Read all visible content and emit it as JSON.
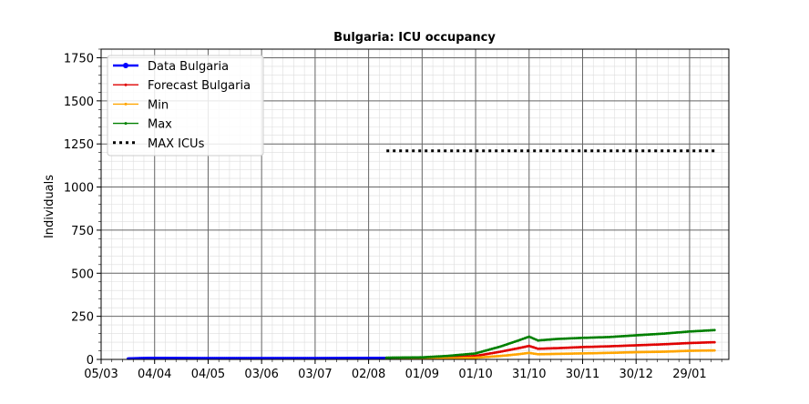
{
  "chart_data": {
    "type": "line",
    "title": "Bulgaria: ICU occupancy",
    "xlabel": "",
    "ylabel": "Individuals",
    "xticks": [
      "05/03",
      "04/04",
      "04/05",
      "03/06",
      "03/07",
      "02/08",
      "01/09",
      "01/10",
      "31/10",
      "30/11",
      "30/12",
      "29/01"
    ],
    "yticks": [
      0,
      250,
      500,
      750,
      1000,
      1250,
      1500,
      1750
    ],
    "x_range": [
      "2020-03-05",
      "2021-02-20"
    ],
    "ylim": [
      0,
      1800
    ],
    "grid": true,
    "legend_position": "top-left",
    "series": [
      {
        "name": "Data Bulgaria",
        "color": "#0000ff",
        "style": "solid-dots",
        "points": [
          [
            "2020-03-20",
            5
          ],
          [
            "2020-04-01",
            8
          ],
          [
            "2020-05-01",
            7
          ],
          [
            "2020-06-01",
            7
          ],
          [
            "2020-07-01",
            7
          ],
          [
            "2020-08-01",
            8
          ],
          [
            "2020-08-12",
            8
          ]
        ]
      },
      {
        "name": "Forecast Bulgaria",
        "color": "#e00000",
        "style": "solid-dots",
        "points": [
          [
            "2020-08-12",
            8
          ],
          [
            "2020-09-01",
            8
          ],
          [
            "2020-09-15",
            10
          ],
          [
            "2020-10-01",
            20
          ],
          [
            "2020-10-15",
            45
          ],
          [
            "2020-10-25",
            65
          ],
          [
            "2020-10-31",
            78
          ],
          [
            "2020-11-05",
            62
          ],
          [
            "2020-11-15",
            65
          ],
          [
            "2020-11-30",
            72
          ],
          [
            "2020-12-15",
            76
          ],
          [
            "2020-12-30",
            82
          ],
          [
            "2021-01-15",
            88
          ],
          [
            "2021-01-29",
            95
          ],
          [
            "2021-02-12",
            100
          ]
        ]
      },
      {
        "name": "Min",
        "color": "#ffa500",
        "style": "solid-dots",
        "points": [
          [
            "2020-08-12",
            5
          ],
          [
            "2020-09-01",
            5
          ],
          [
            "2020-09-15",
            6
          ],
          [
            "2020-10-01",
            10
          ],
          [
            "2020-10-15",
            20
          ],
          [
            "2020-10-25",
            30
          ],
          [
            "2020-10-31",
            38
          ],
          [
            "2020-11-05",
            30
          ],
          [
            "2020-11-15",
            32
          ],
          [
            "2020-11-30",
            35
          ],
          [
            "2020-12-15",
            38
          ],
          [
            "2020-12-30",
            42
          ],
          [
            "2021-01-15",
            45
          ],
          [
            "2021-01-29",
            50
          ],
          [
            "2021-02-12",
            52
          ]
        ]
      },
      {
        "name": "Max",
        "color": "#008000",
        "style": "solid-dots",
        "points": [
          [
            "2020-08-12",
            10
          ],
          [
            "2020-09-01",
            12
          ],
          [
            "2020-09-15",
            20
          ],
          [
            "2020-10-01",
            35
          ],
          [
            "2020-10-15",
            75
          ],
          [
            "2020-10-25",
            110
          ],
          [
            "2020-10-31",
            132
          ],
          [
            "2020-11-05",
            110
          ],
          [
            "2020-11-15",
            118
          ],
          [
            "2020-11-30",
            125
          ],
          [
            "2020-12-15",
            130
          ],
          [
            "2020-12-30",
            140
          ],
          [
            "2021-01-15",
            150
          ],
          [
            "2021-01-29",
            162
          ],
          [
            "2021-02-12",
            170
          ]
        ]
      },
      {
        "name": "MAX ICUs",
        "color": "#000000",
        "style": "dotted",
        "points": [
          [
            "2020-08-12",
            1210
          ],
          [
            "2021-02-12",
            1210
          ]
        ]
      }
    ]
  }
}
